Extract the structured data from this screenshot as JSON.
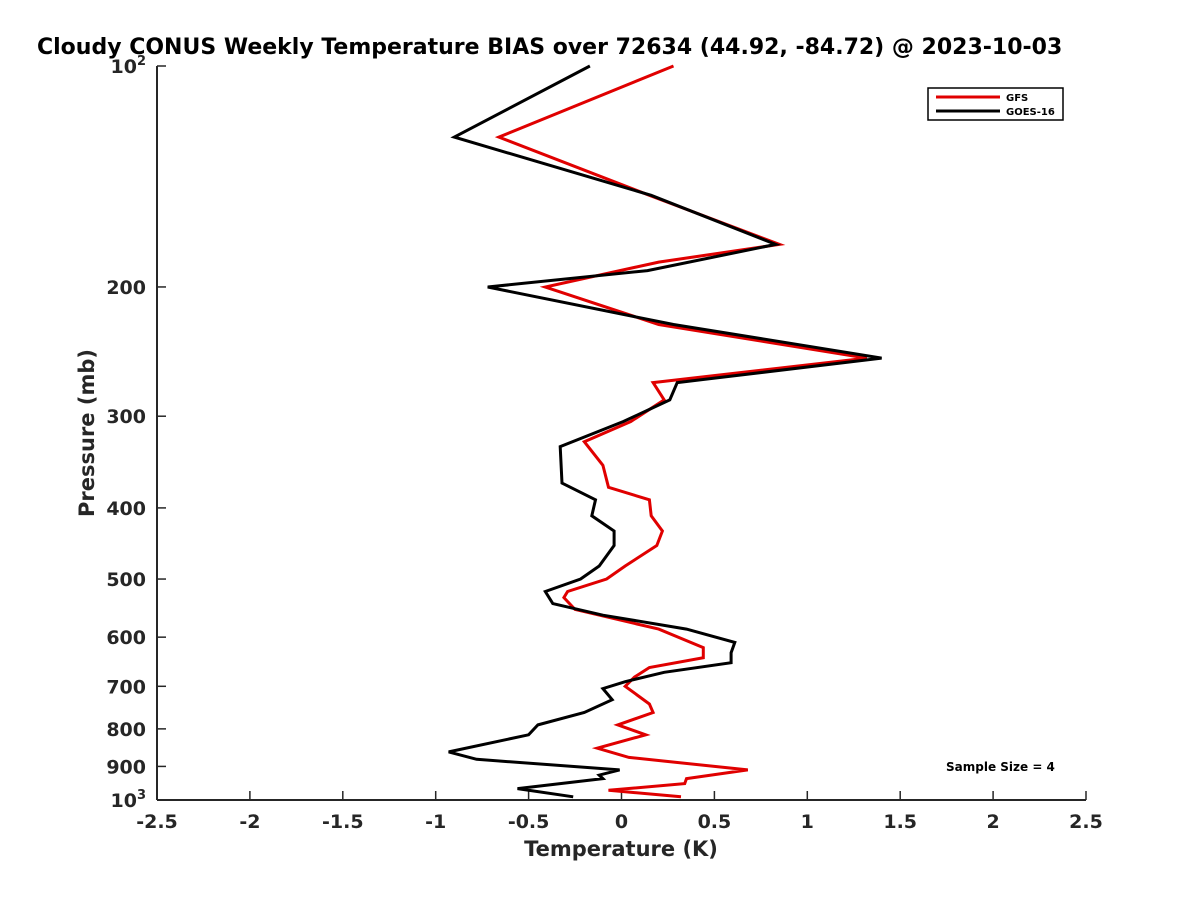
{
  "chart_data": {
    "type": "line",
    "title": "Cloudy CONUS Weekly Temperature BIAS over 72634 (44.92, -84.72) @ 2023-10-03",
    "xlabel": "Temperature (K)",
    "ylabel": "Pressure (mb)",
    "xlim": [
      -2.5,
      2.5
    ],
    "ylim": [
      1000,
      100
    ],
    "y_scale": "log",
    "y_reversed": true,
    "x_ticks": [
      "-2.5",
      "-2",
      "-1.5",
      "-1",
      "-0.5",
      "0",
      "0.5",
      "1",
      "1.5",
      "2",
      "2.5"
    ],
    "y_ticks": [
      {
        "base": "10",
        "exp": "2",
        "text": ""
      },
      {
        "text": "200"
      },
      {
        "text": "300"
      },
      {
        "text": "400"
      },
      {
        "text": "500"
      },
      {
        "text": "600"
      },
      {
        "text": "700"
      },
      {
        "text": "800"
      },
      {
        "text": "900"
      },
      {
        "base": "10",
        "exp": "3",
        "text": ""
      }
    ],
    "legend_position": "top-right",
    "grid": false,
    "annotation": "Sample Size = 4",
    "series": [
      {
        "name": "GFS",
        "color": "#e00000",
        "points": [
          [
            0.28,
            100
          ],
          [
            -0.66,
            125
          ],
          [
            0.15,
            150
          ],
          [
            0.85,
            175
          ],
          [
            0.2,
            185
          ],
          [
            -0.41,
            200
          ],
          [
            0.2,
            225
          ],
          [
            1.32,
            250
          ],
          [
            0.17,
            270
          ],
          [
            0.23,
            285
          ],
          [
            0.05,
            305
          ],
          [
            -0.2,
            325
          ],
          [
            -0.1,
            350
          ],
          [
            -0.07,
            375
          ],
          [
            0.15,
            390
          ],
          [
            0.16,
            410
          ],
          [
            0.22,
            430
          ],
          [
            0.19,
            450
          ],
          [
            0.02,
            480
          ],
          [
            -0.08,
            500
          ],
          [
            -0.29,
            520
          ],
          [
            -0.31,
            530
          ],
          [
            -0.25,
            550
          ],
          [
            0.2,
            585
          ],
          [
            0.44,
            620
          ],
          [
            0.44,
            640
          ],
          [
            0.15,
            660
          ],
          [
            0.07,
            680
          ],
          [
            0.02,
            700
          ],
          [
            0.07,
            715
          ],
          [
            0.15,
            740
          ],
          [
            0.17,
            760
          ],
          [
            -0.02,
            790
          ],
          [
            0.13,
            815
          ],
          [
            -0.13,
            850
          ],
          [
            0.04,
            875
          ],
          [
            0.68,
            910
          ],
          [
            0.35,
            935
          ],
          [
            0.34,
            950
          ],
          [
            -0.07,
            970
          ],
          [
            0.32,
            990
          ]
        ]
      },
      {
        "name": "GOES-16",
        "color": "#000000",
        "points": [
          [
            -0.17,
            100
          ],
          [
            -0.9,
            125
          ],
          [
            0.16,
            150
          ],
          [
            0.83,
            175
          ],
          [
            0.14,
            190
          ],
          [
            -0.72,
            200
          ],
          [
            0.28,
            225
          ],
          [
            1.4,
            250
          ],
          [
            0.3,
            270
          ],
          [
            0.26,
            285
          ],
          [
            0.01,
            305
          ],
          [
            -0.33,
            330
          ],
          [
            -0.32,
            370
          ],
          [
            -0.14,
            390
          ],
          [
            -0.16,
            410
          ],
          [
            -0.04,
            430
          ],
          [
            -0.04,
            450
          ],
          [
            -0.12,
            480
          ],
          [
            -0.22,
            500
          ],
          [
            -0.41,
            520
          ],
          [
            -0.37,
            540
          ],
          [
            -0.1,
            560
          ],
          [
            0.35,
            585
          ],
          [
            0.61,
            610
          ],
          [
            0.59,
            630
          ],
          [
            0.59,
            650
          ],
          [
            0.23,
            670
          ],
          [
            0.02,
            690
          ],
          [
            -0.1,
            705
          ],
          [
            -0.05,
            730
          ],
          [
            -0.2,
            760
          ],
          [
            -0.45,
            790
          ],
          [
            -0.5,
            815
          ],
          [
            -0.93,
            860
          ],
          [
            -0.78,
            880
          ],
          [
            -0.01,
            910
          ],
          [
            -0.12,
            925
          ],
          [
            -0.1,
            935
          ],
          [
            -0.56,
            965
          ],
          [
            -0.26,
            990
          ]
        ]
      }
    ]
  }
}
